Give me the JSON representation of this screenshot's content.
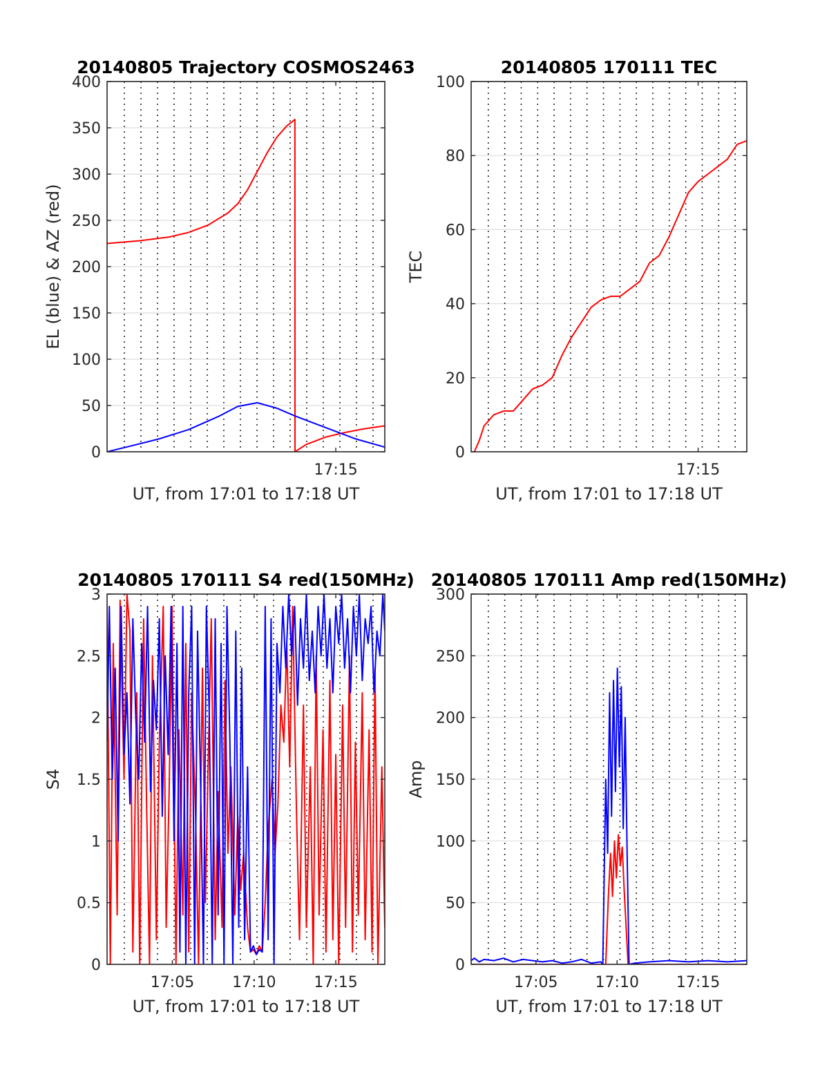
{
  "chart_data": [
    {
      "id": "traj",
      "type": "line",
      "title": "20140805 Trajectory COSMOS2463",
      "xlabel": "UT, from 17:01 to 17:18 UT",
      "ylabel": "EL (blue) & AZ (red)",
      "xlim": [
        17.0167,
        17.3
      ],
      "ylim": [
        0,
        400
      ],
      "yticks": [
        0,
        50,
        100,
        150,
        200,
        250,
        300,
        350,
        400
      ],
      "xticks": [
        {
          "value": 17.25,
          "label": "17:15"
        }
      ],
      "grid": true,
      "series": [
        {
          "color": "#ff0000",
          "x": [
            17.0167,
            17.05,
            17.08,
            17.1,
            17.12,
            17.14,
            17.15,
            17.16,
            17.17,
            17.18,
            17.19,
            17.2,
            17.2083,
            17.2084,
            17.22,
            17.24,
            17.26,
            17.28,
            17.3
          ],
          "y": [
            225,
            228,
            232,
            237,
            245,
            258,
            268,
            283,
            303,
            323,
            340,
            352,
            359,
            0,
            8,
            16,
            21,
            25,
            28
          ]
        },
        {
          "color": "#0000ff",
          "x": [
            17.0167,
            17.04,
            17.07,
            17.1,
            17.13,
            17.15,
            17.17,
            17.19,
            17.21,
            17.24,
            17.27,
            17.3
          ],
          "y": [
            0,
            6,
            14,
            24,
            38,
            49,
            53,
            47,
            38,
            26,
            14,
            5
          ]
        }
      ]
    },
    {
      "id": "tec",
      "type": "line",
      "title": "20140805 170111 TEC",
      "xlabel": "UT, from 17:01 to 17:18 UT",
      "ylabel": "TEC",
      "xlim": [
        17.0167,
        17.3
      ],
      "ylim": [
        0,
        100
      ],
      "yticks": [
        0,
        20,
        40,
        60,
        80,
        100
      ],
      "xticks": [
        {
          "value": 17.25,
          "label": "17:15"
        }
      ],
      "grid": true,
      "series": [
        {
          "color": "#ff0000",
          "x": [
            17.02,
            17.025,
            17.03,
            17.04,
            17.05,
            17.06,
            17.07,
            17.08,
            17.09,
            17.1,
            17.11,
            17.12,
            17.13,
            17.14,
            17.15,
            17.16,
            17.17,
            17.18,
            17.19,
            17.2,
            17.21,
            17.22,
            17.23,
            17.24,
            17.25,
            17.26,
            17.27,
            17.28,
            17.29,
            17.3
          ],
          "y": [
            0,
            3,
            7,
            10,
            11,
            11,
            14,
            17,
            18,
            20,
            26,
            31,
            35,
            39,
            41,
            42,
            42,
            44,
            46,
            51,
            53,
            58,
            64,
            70,
            73,
            75,
            77,
            79,
            83,
            84
          ]
        }
      ]
    },
    {
      "id": "s4",
      "type": "line",
      "title": "20140805 170111 S4 red(150MHz)",
      "xlabel": "UT, from 17:01 to 17:18 UT",
      "ylabel": "S4",
      "xlim": [
        17.0167,
        17.3
      ],
      "ylim": [
        0,
        3
      ],
      "yticks": [
        0,
        0.5,
        1,
        1.5,
        2,
        2.5,
        3
      ],
      "xticks": [
        {
          "value": 17.0833,
          "label": "17:05"
        },
        {
          "value": 17.1667,
          "label": "17:10"
        },
        {
          "value": 17.25,
          "label": "17:15"
        }
      ],
      "grid": true,
      "series": [
        {
          "color": "#ff0000",
          "x": [
            17.0167,
            17.02,
            17.023,
            17.027,
            17.03,
            17.034,
            17.037,
            17.04,
            17.043,
            17.047,
            17.05,
            17.054,
            17.057,
            17.06,
            17.063,
            17.067,
            17.07,
            17.074,
            17.077,
            17.08,
            17.083,
            17.087,
            17.09,
            17.094,
            17.097,
            17.1,
            17.103,
            17.107,
            17.11,
            17.114,
            17.117,
            17.12,
            17.123,
            17.127,
            17.13,
            17.134,
            17.137,
            17.14,
            17.143,
            17.147,
            17.15,
            17.153,
            17.156,
            17.16,
            17.163,
            17.166,
            17.169,
            17.172,
            17.175,
            17.178,
            17.181,
            17.185,
            17.188,
            17.191,
            17.194,
            17.197,
            17.2,
            17.203,
            17.206,
            17.21,
            17.213,
            17.217,
            17.22,
            17.224,
            17.227,
            17.23,
            17.233,
            17.237,
            17.24,
            17.244,
            17.247,
            17.25,
            17.253,
            17.257,
            17.26,
            17.264,
            17.267,
            17.27,
            17.273,
            17.277,
            17.28,
            17.284,
            17.287,
            17.29,
            17.293,
            17.297,
            17.3
          ],
          "y": [
            2.9,
            0,
            2.6,
            0.4,
            2.95,
            1.5,
            3,
            2.7,
            0.1,
            2.2,
            0,
            2.8,
            1.3,
            0,
            2.5,
            0.2,
            1.8,
            2.9,
            0.3,
            1.4,
            2.9,
            0,
            1.9,
            0.4,
            2.6,
            0.1,
            2.2,
            1.2,
            0,
            2.4,
            0.5,
            1.7,
            2.8,
            0.2,
            1.4,
            0.3,
            2.3,
            0.9,
            1.6,
            0.4,
            1.2,
            0.6,
            0.9,
            0.3,
            0.1,
            0.12,
            0.08,
            0.15,
            0.1,
            0.5,
            1.1,
            1.5,
            0.9,
            1.3,
            2.1,
            1.8,
            2.6,
            1.6,
            2.9,
            1.2,
            0.2,
            2.1,
            0.3,
            1.6,
            0,
            2.5,
            0.4,
            1.9,
            0.1,
            2.3,
            0.2,
            1.7,
            0,
            2.1,
            0.3,
            2.5,
            0.1,
            1.8,
            0.4,
            2.2,
            0.2,
            1.9,
            0.1,
            2.4,
            0,
            1.6,
            0.3
          ]
        },
        {
          "color": "#0000ff",
          "x": [
            17.0167,
            17.019,
            17.022,
            17.025,
            17.028,
            17.031,
            17.034,
            17.037,
            17.04,
            17.043,
            17.046,
            17.049,
            17.052,
            17.055,
            17.058,
            17.061,
            17.064,
            17.067,
            17.07,
            17.073,
            17.076,
            17.079,
            17.082,
            17.085,
            17.088,
            17.091,
            17.094,
            17.097,
            17.1,
            17.103,
            17.106,
            17.109,
            17.112,
            17.115,
            17.118,
            17.121,
            17.124,
            17.127,
            17.13,
            17.133,
            17.136,
            17.139,
            17.142,
            17.145,
            17.148,
            17.151,
            17.154,
            17.157,
            17.16,
            17.163,
            17.166,
            17.169,
            17.172,
            17.175,
            17.178,
            17.181,
            17.184,
            17.187,
            17.19,
            17.193,
            17.196,
            17.199,
            17.202,
            17.205,
            17.208,
            17.211,
            17.214,
            17.217,
            17.22,
            17.223,
            17.226,
            17.229,
            17.232,
            17.235,
            17.238,
            17.241,
            17.244,
            17.247,
            17.25,
            17.253,
            17.256,
            17.259,
            17.262,
            17.265,
            17.268,
            17.271,
            17.274,
            17.277,
            17.28,
            17.283,
            17.286,
            17.289,
            17.292,
            17.295,
            17.298,
            17.3
          ],
          "y": [
            1.8,
            2.9,
            1.5,
            2.4,
            1.0,
            2.9,
            1.7,
            2.2,
            1.3,
            2.8,
            2.0,
            1.5,
            2.6,
            1.8,
            2.9,
            1.4,
            2.3,
            1.9,
            2.8,
            1.2,
            2.5,
            1.7,
            2.9,
            1.0,
            2.6,
            0.1,
            2.9,
            0.0,
            2.2,
            2.9,
            0.0,
            2.7,
            1.5,
            0.0,
            2.9,
            2.0,
            0.0,
            2.8,
            0.4,
            2.6,
            0.0,
            2.9,
            1.8,
            0.0,
            2.7,
            0.3,
            2.4,
            0.2,
            1.6,
            0.1,
            0.15,
            0.08,
            0.12,
            0.1,
            2.9,
            0.2,
            2.8,
            0.0,
            2.6,
            2.2,
            2.9,
            2.4,
            3.0,
            2.5,
            2.9,
            2.1,
            2.8,
            2.4,
            3.0,
            2.3,
            2.7,
            2.2,
            2.9,
            2.5,
            3.0,
            2.4,
            2.8,
            2.2,
            2.9,
            2.6,
            3.0,
            2.4,
            2.8,
            2.2,
            2.9,
            2.5,
            3.0,
            2.3,
            2.8,
            2.6,
            2.9,
            2.2,
            2.7,
            2.5,
            3.0,
            2.7
          ]
        }
      ]
    },
    {
      "id": "amp",
      "type": "line",
      "title": "20140805 170111 Amp red(150MHz)",
      "xlabel": "UT, from 17:01 to 17:18 UT",
      "ylabel": "Amp",
      "xlim": [
        17.0167,
        17.3
      ],
      "ylim": [
        0,
        300
      ],
      "yticks": [
        0,
        50,
        100,
        150,
        200,
        250,
        300
      ],
      "xticks": [
        {
          "value": 17.0833,
          "label": "17:05"
        },
        {
          "value": 17.1667,
          "label": "17:10"
        },
        {
          "value": 17.25,
          "label": "17:15"
        }
      ],
      "grid": true,
      "series": [
        {
          "color": "#ff0000",
          "x": [
            17.0167,
            17.1,
            17.15,
            17.155,
            17.158,
            17.16,
            17.162,
            17.164,
            17.166,
            17.168,
            17.17,
            17.172,
            17.174,
            17.178,
            17.2,
            17.3
          ],
          "y": [
            0,
            0,
            0,
            0,
            60,
            90,
            55,
            100,
            70,
            105,
            80,
            95,
            60,
            0,
            0,
            0
          ]
        },
        {
          "color": "#0000ff",
          "x": [
            17.0167,
            17.02,
            17.025,
            17.03,
            17.04,
            17.05,
            17.06,
            17.07,
            17.08,
            17.09,
            17.1,
            17.11,
            17.12,
            17.13,
            17.14,
            17.15,
            17.152,
            17.155,
            17.157,
            17.159,
            17.161,
            17.163,
            17.165,
            17.167,
            17.169,
            17.171,
            17.173,
            17.175,
            17.177,
            17.179,
            17.185,
            17.2,
            17.22,
            17.24,
            17.26,
            17.28,
            17.3
          ],
          "y": [
            3,
            5,
            2,
            4,
            3,
            5,
            2,
            4,
            3,
            2,
            3,
            1,
            2,
            4,
            1,
            2,
            0,
            150,
            90,
            220,
            120,
            230,
            140,
            240,
            160,
            225,
            110,
            200,
            90,
            0,
            1,
            2,
            3,
            2,
            3,
            2,
            3
          ]
        }
      ]
    }
  ]
}
